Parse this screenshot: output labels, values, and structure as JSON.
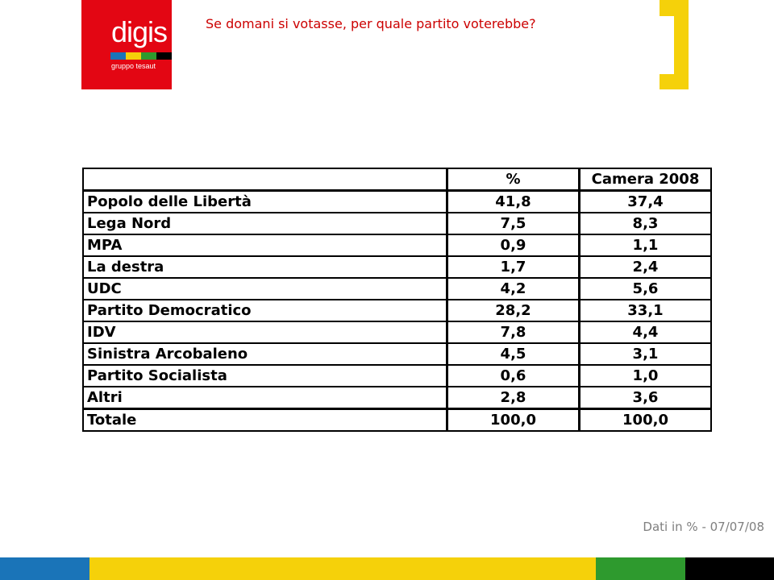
{
  "logo": {
    "name": "digis",
    "subtitle": "gruppo tesaut",
    "background": "#e30613",
    "stripe_colors": [
      "#1a74b8",
      "#f5d10a",
      "#2e9a2e",
      "#000000"
    ]
  },
  "header": {
    "question": "Se domani si votasse, per quale partito voterebbe?",
    "question_color": "#cc0000",
    "bracket_color": "#f5d10a"
  },
  "table": {
    "headers": [
      "",
      "%",
      "Camera 2008"
    ],
    "rows": [
      {
        "party": "Popolo delle Libertà",
        "pct": "41,8",
        "camera": "37,4"
      },
      {
        "party": "Lega Nord",
        "pct": "7,5",
        "camera": "8,3"
      },
      {
        "party": "MPA",
        "pct": "0,9",
        "camera": "1,1"
      },
      {
        "party": "La destra",
        "pct": "1,7",
        "camera": "2,4"
      },
      {
        "party": "UDC",
        "pct": "4,2",
        "camera": "5,6"
      },
      {
        "party": "Partito Democratico",
        "pct": "28,2",
        "camera": "33,1"
      },
      {
        "party": "IDV",
        "pct": "7,8",
        "camera": "4,4"
      },
      {
        "party": "Sinistra Arcobaleno",
        "pct": "4,5",
        "camera": "3,1"
      },
      {
        "party": "Partito Socialista",
        "pct": "0,6",
        "camera": "1,0"
      },
      {
        "party": "Altri",
        "pct": "2,8",
        "camera": "3,6"
      }
    ],
    "total": {
      "party": "Totale",
      "pct": "100,0",
      "camera": "100,0"
    }
  },
  "footer": {
    "note": "Dati in % - 07/07/08",
    "band_colors": [
      "#1a74b8",
      "#f5d10a",
      "#2e9a2e",
      "#000000"
    ]
  }
}
